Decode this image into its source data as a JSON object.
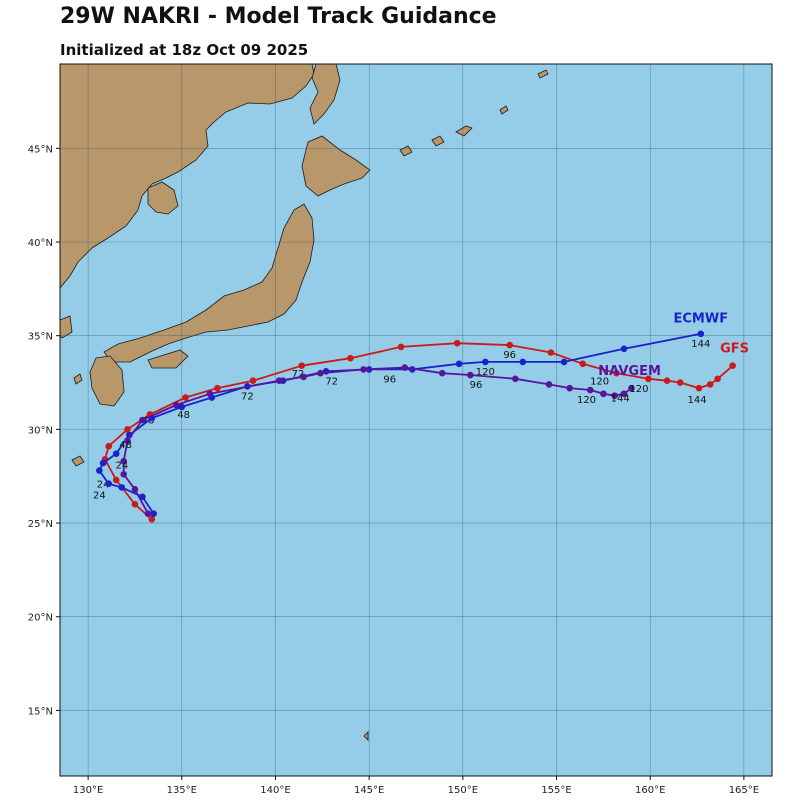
{
  "header": {
    "title": "29W NAKRI - Model Track Guidance",
    "subtitle": "Initialized at 18z Oct 09 2025"
  },
  "map": {
    "lon_range": [
      128.5,
      166.5
    ],
    "lat_range": [
      11.5,
      49.5
    ],
    "ocean_color": "#95cde8",
    "land_color": "#b8976a",
    "grid_color": "#3a5f6f",
    "lon_ticks": [
      130,
      135,
      140,
      145,
      150,
      155,
      160,
      165
    ],
    "lon_tick_labels": [
      "130°E",
      "135°E",
      "140°E",
      "145°E",
      "150°E",
      "155°E",
      "160°E",
      "165°E"
    ],
    "lat_ticks": [
      15,
      20,
      25,
      30,
      35,
      40,
      45
    ],
    "lat_tick_labels": [
      "15°N",
      "20°N",
      "25°N",
      "30°N",
      "35°N",
      "40°N",
      "45°N"
    ]
  },
  "chart_data": {
    "type": "line",
    "series": [
      {
        "name": "GFS",
        "color": "#cc1a1a",
        "label_pos": [
          164.5,
          34.1
        ],
        "points": [
          [
            133.4,
            25.2
          ],
          [
            132.5,
            26.0
          ],
          [
            131.5,
            27.3
          ],
          [
            130.9,
            28.4
          ],
          [
            131.1,
            29.1
          ],
          [
            132.1,
            30.0
          ],
          [
            133.3,
            30.8
          ],
          [
            135.2,
            31.7
          ],
          [
            136.9,
            32.2
          ],
          [
            138.8,
            32.6
          ],
          [
            141.4,
            33.4
          ],
          [
            144.0,
            33.8
          ],
          [
            146.7,
            34.4
          ],
          [
            149.7,
            34.6
          ],
          [
            152.5,
            34.5
          ],
          [
            154.7,
            34.1
          ],
          [
            156.4,
            33.5
          ],
          [
            158.2,
            33.0
          ],
          [
            159.9,
            32.7
          ],
          [
            160.9,
            32.6
          ],
          [
            161.6,
            32.5
          ],
          [
            162.6,
            32.2
          ],
          [
            163.2,
            32.4
          ],
          [
            163.6,
            32.7
          ],
          [
            164.4,
            33.4
          ]
        ],
        "hour_labels": [
          {
            "text": "24",
            "pos": [
              130.8,
              26.9
            ]
          },
          {
            "text": "48",
            "pos": [
              133.2,
              30.3
            ]
          },
          {
            "text": "72",
            "pos": [
              141.2,
              32.8
            ]
          },
          {
            "text": "96",
            "pos": [
              152.5,
              33.8
            ]
          },
          {
            "text": "120",
            "pos": [
              157.3,
              32.4
            ]
          },
          {
            "text": "144",
            "pos": [
              162.5,
              31.4
            ]
          }
        ]
      },
      {
        "name": "ECMWF",
        "color": "#1a22cc",
        "label_pos": [
          162.7,
          35.7
        ],
        "points": [
          [
            133.5,
            25.5
          ],
          [
            132.9,
            26.4
          ],
          [
            131.8,
            26.9
          ],
          [
            131.1,
            27.1
          ],
          [
            130.6,
            27.8
          ],
          [
            130.8,
            28.2
          ],
          [
            131.5,
            28.7
          ],
          [
            132.2,
            29.7
          ],
          [
            133.4,
            30.6
          ],
          [
            135.0,
            31.2
          ],
          [
            136.6,
            31.7
          ],
          [
            138.5,
            32.3
          ],
          [
            140.4,
            32.6
          ],
          [
            142.7,
            33.1
          ],
          [
            145.0,
            33.2
          ],
          [
            147.3,
            33.2
          ],
          [
            149.8,
            33.5
          ],
          [
            151.2,
            33.6
          ],
          [
            153.2,
            33.6
          ],
          [
            155.4,
            33.6
          ],
          [
            158.6,
            34.3
          ],
          [
            162.7,
            35.1
          ]
        ],
        "hour_labels": [
          {
            "text": "24",
            "pos": [
              130.6,
              26.3
            ]
          },
          {
            "text": "48",
            "pos": [
              135.1,
              30.6
            ]
          },
          {
            "text": "72",
            "pos": [
              138.5,
              31.6
            ]
          },
          {
            "text": "96",
            "pos": [
              146.1,
              32.5
            ]
          },
          {
            "text": "120",
            "pos": [
              151.2,
              32.9
            ]
          },
          {
            "text": "144",
            "pos": [
              162.7,
              34.4
            ]
          }
        ]
      },
      {
        "name": "NAVGEM",
        "color": "#5a1499",
        "label_pos": [
          158.9,
          32.9
        ],
        "points": [
          [
            133.2,
            25.5
          ],
          [
            132.5,
            26.8
          ],
          [
            131.9,
            27.6
          ],
          [
            131.9,
            28.3
          ],
          [
            132.1,
            29.4
          ],
          [
            132.9,
            30.5
          ],
          [
            134.7,
            31.3
          ],
          [
            136.5,
            31.9
          ],
          [
            140.2,
            32.6
          ],
          [
            141.5,
            32.8
          ],
          [
            142.4,
            33.0
          ],
          [
            144.7,
            33.2
          ],
          [
            146.9,
            33.3
          ],
          [
            148.9,
            33.0
          ],
          [
            150.4,
            32.9
          ],
          [
            152.8,
            32.7
          ],
          [
            154.6,
            32.4
          ],
          [
            155.7,
            32.2
          ],
          [
            156.8,
            32.1
          ],
          [
            157.5,
            31.9
          ],
          [
            158.1,
            31.8
          ],
          [
            158.6,
            31.9
          ],
          [
            159.0,
            32.2
          ]
        ],
        "hour_labels": [
          {
            "text": "24",
            "pos": [
              131.8,
              27.9
            ]
          },
          {
            "text": "48",
            "pos": [
              132.0,
              29.0
            ]
          },
          {
            "text": "72",
            "pos": [
              143.0,
              32.4
            ]
          },
          {
            "text": "96",
            "pos": [
              150.7,
              32.2
            ]
          },
          {
            "text": "120",
            "pos": [
              156.6,
              31.4
            ]
          },
          {
            "text": "120",
            "pos": [
              159.4,
              32.0
            ]
          },
          {
            "text": "144",
            "pos": [
              158.4,
              31.5
            ]
          }
        ]
      }
    ]
  }
}
